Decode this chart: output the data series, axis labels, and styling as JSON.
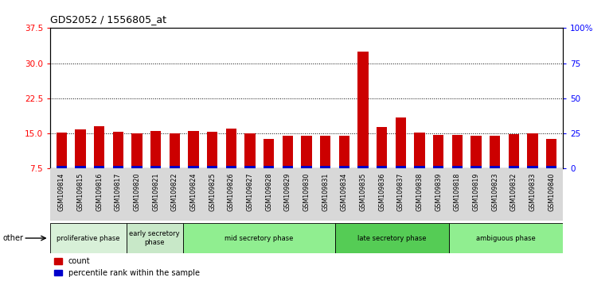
{
  "title": "GDS2052 / 1556805_at",
  "samples": [
    "GSM109814",
    "GSM109815",
    "GSM109816",
    "GSM109817",
    "GSM109820",
    "GSM109821",
    "GSM109822",
    "GSM109824",
    "GSM109825",
    "GSM109826",
    "GSM109827",
    "GSM109828",
    "GSM109829",
    "GSM109830",
    "GSM109831",
    "GSM109834",
    "GSM109835",
    "GSM109836",
    "GSM109837",
    "GSM109838",
    "GSM109839",
    "GSM109818",
    "GSM109819",
    "GSM109823",
    "GSM109832",
    "GSM109833",
    "GSM109840"
  ],
  "count_values": [
    15.2,
    15.8,
    16.5,
    15.3,
    15.1,
    15.5,
    15.0,
    15.6,
    15.4,
    16.1,
    15.1,
    13.8,
    14.5,
    14.5,
    14.5,
    14.6,
    32.5,
    16.3,
    18.5,
    15.2,
    14.7,
    14.7,
    14.6,
    14.5,
    14.8,
    15.1,
    13.9
  ],
  "percentile_values": [
    0.9,
    0.9,
    0.9,
    0.85,
    0.85,
    0.9,
    0.85,
    0.9,
    0.9,
    0.9,
    0.85,
    0.85,
    0.85,
    0.85,
    0.85,
    0.85,
    1.4,
    0.9,
    0.9,
    0.85,
    0.85,
    0.85,
    0.85,
    0.85,
    0.85,
    0.85,
    0.85
  ],
  "phases": [
    {
      "label": "proliferative phase",
      "start": 0,
      "end": 4,
      "color": "#d8f0d8"
    },
    {
      "label": "early secretory\nphase",
      "start": 4,
      "end": 7,
      "color": "#c8e8c8"
    },
    {
      "label": "mid secretory phase",
      "start": 7,
      "end": 15,
      "color": "#90ee90"
    },
    {
      "label": "late secretory phase",
      "start": 15,
      "end": 21,
      "color": "#55cc55"
    },
    {
      "label": "ambiguous phase",
      "start": 21,
      "end": 27,
      "color": "#90ee90"
    }
  ],
  "ymin": 7.5,
  "ymax": 37.5,
  "yticks_left": [
    7.5,
    15.0,
    22.5,
    30.0,
    37.5
  ],
  "yticks_right": [
    0,
    25,
    50,
    75,
    100
  ],
  "bar_color_red": "#cc0000",
  "bar_color_blue": "#0000cc",
  "bar_width": 0.55,
  "blue_bar_height": 0.55
}
